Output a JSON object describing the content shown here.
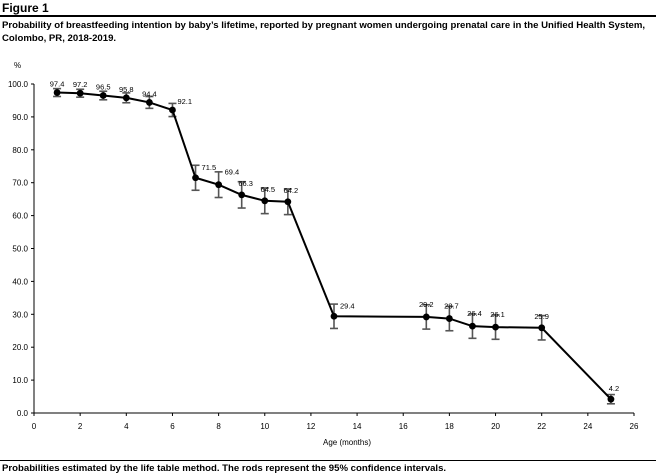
{
  "figure": {
    "label": "Figure 1",
    "caption": "Probability of breastfeeding intention by baby’s lifetime, reported by pregnant women undergoing prenatal care in the Unified Health System, Colombo, PR, 2018-2019.",
    "footnote": "Probabilities estimated by the life table method. The rods represent the 95% confidence intervals."
  },
  "chart_data": {
    "type": "line",
    "title": "",
    "xlabel": "Age (months)",
    "ylabel": "%",
    "xlim": [
      0,
      26
    ],
    "ylim": [
      0,
      100
    ],
    "x_ticks": [
      0,
      2,
      4,
      6,
      8,
      10,
      12,
      14,
      16,
      18,
      20,
      22,
      24,
      26
    ],
    "y_ticks": [
      0,
      10,
      20,
      30,
      40,
      50,
      60,
      70,
      80,
      90,
      100
    ],
    "y_tick_labels": [
      "0.0",
      "10.0",
      "20.0",
      "30.0",
      "40.0",
      "50.0",
      "60.0",
      "70.0",
      "80.0",
      "90.0",
      "100.0"
    ],
    "grid": false,
    "legend": "none",
    "series": [
      {
        "x": [
          1,
          2,
          3,
          4,
          5,
          6,
          7,
          8,
          9,
          10,
          11,
          13,
          17,
          18,
          19,
          20,
          22,
          25
        ],
        "values": [
          97.4,
          97.2,
          96.5,
          95.8,
          94.4,
          92.1,
          71.5,
          69.4,
          66.3,
          64.5,
          64.2,
          29.4,
          29.2,
          28.7,
          26.4,
          26.1,
          25.9,
          4.2
        ],
        "labels": [
          "97.4",
          "97.2",
          "96.5",
          "95.8",
          "94.4",
          "92.1",
          "71.5",
          "69.4",
          "66.3",
          "64.5",
          "64.2",
          "29.4",
          "29.2",
          "28.7",
          "26.4",
          "26.1",
          "25.9",
          "4.2"
        ],
        "ci_lower": [
          96.2,
          96.0,
          95.2,
          94.3,
          92.6,
          90.1,
          67.7,
          65.5,
          62.3,
          60.6,
          60.3,
          25.7,
          25.5,
          25.0,
          22.7,
          22.4,
          22.2,
          2.8
        ],
        "ci_upper": [
          98.6,
          98.4,
          97.8,
          97.3,
          96.2,
          94.1,
          75.3,
          73.3,
          70.3,
          68.4,
          68.1,
          33.1,
          32.9,
          32.4,
          30.1,
          29.8,
          29.6,
          5.6
        ]
      }
    ],
    "colors": {
      "line": "#000000",
      "error_bar": "#555555",
      "axis": "#000000"
    }
  }
}
